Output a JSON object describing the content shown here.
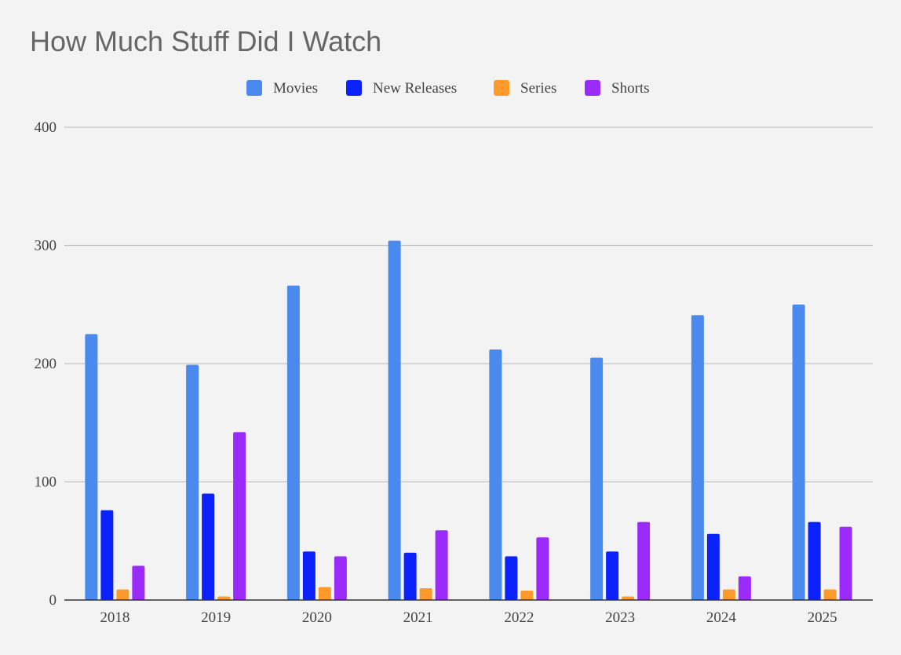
{
  "chart_data": {
    "type": "bar",
    "title": "How Much Stuff Did I Watch",
    "xlabel": "",
    "ylabel": "",
    "categories": [
      "2018",
      "2019",
      "2020",
      "2021",
      "2022",
      "2023",
      "2024",
      "2025"
    ],
    "ylim": [
      0,
      400
    ],
    "yticks": [
      0,
      100,
      200,
      300,
      400
    ],
    "grid": true,
    "legend_position": "top",
    "series": [
      {
        "name": "Movies",
        "color": "#4a89ee",
        "values": [
          225,
          199,
          266,
          304,
          212,
          205,
          241,
          250
        ]
      },
      {
        "name": "New Releases",
        "color": "#0c22fb",
        "values": [
          76,
          90,
          41,
          40,
          37,
          41,
          56,
          66
        ]
      },
      {
        "name": "Series",
        "color": "#fe9a2b",
        "values": [
          9,
          3,
          11,
          10,
          8,
          3,
          9,
          9
        ]
      },
      {
        "name": "Shorts",
        "color": "#9b2bfb",
        "values": [
          29,
          142,
          37,
          59,
          53,
          66,
          20,
          62
        ]
      }
    ]
  }
}
